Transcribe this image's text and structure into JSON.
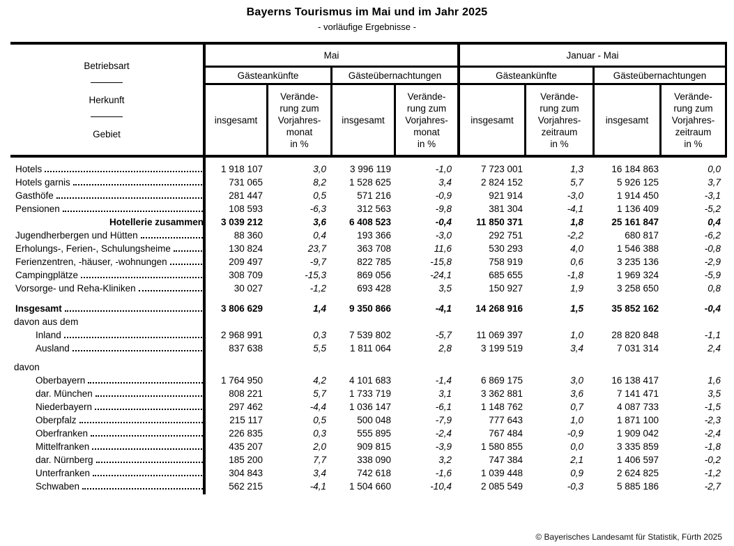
{
  "title": "Bayerns Tourismus im Mai und im Jahr 2025",
  "subtitle": "- vorläufige Ergebnisse -",
  "header": {
    "stub": {
      "line1": "Betriebsart",
      "line2": "Herkunft",
      "line3": "Gebiet"
    },
    "groups": [
      {
        "label": "Mai",
        "subgroups": [
          {
            "label": "Gästeankünfte"
          },
          {
            "label": "Gästeübernachtungen"
          }
        ],
        "value_label": "insgesamt",
        "change_label": "Verände-\nrung zum\nVorjahres-\nmonat\nin %"
      },
      {
        "label": "Januar - Mai",
        "subgroups": [
          {
            "label": "Gästeankünfte"
          },
          {
            "label": "Gästeübernachtungen"
          }
        ],
        "value_label": "insgesamt",
        "change_label": "Verände-\nrung zum\nVorjahres-\nzeitraum\nin %"
      }
    ]
  },
  "table": {
    "value_columns": [
      "mai_ankuenfte_insgesamt",
      "mai_ankuenfte_veraenderung_pct",
      "mai_uebernachtungen_insgesamt",
      "mai_uebernachtungen_veraenderung_pct",
      "jan_mai_ankuenfte_insgesamt",
      "jan_mai_ankuenfte_veraenderung_pct",
      "jan_mai_uebernachtungen_insgesamt",
      "jan_mai_uebernachtungen_veraenderung_pct"
    ],
    "rows": [
      {
        "label": "Hotels",
        "leader": true,
        "values": [
          "1 918 107",
          "3,0",
          "3 996 119",
          "-1,0",
          "7 723 001",
          "1,3",
          "16 184 863",
          "0,0"
        ]
      },
      {
        "label": "Hotels garnis",
        "leader": true,
        "values": [
          "731 065",
          "8,2",
          "1 528 625",
          "3,4",
          "2 824 152",
          "5,7",
          "5 926 125",
          "3,7"
        ]
      },
      {
        "label": "Gasthöfe",
        "leader": true,
        "values": [
          "281 447",
          "0,5",
          "571 216",
          "-0,9",
          "921 914",
          "-3,0",
          "1 914 450",
          "-3,1"
        ]
      },
      {
        "label": "Pensionen",
        "leader": true,
        "values": [
          "108 593",
          "-6,3",
          "312 563",
          "-9,8",
          "381 304",
          "-4,1",
          "1 136 409",
          "-5,2"
        ]
      },
      {
        "label": "Hotellerie zusammen",
        "bold": true,
        "align": "right",
        "leader": false,
        "values": [
          "3 039 212",
          "3,6",
          "6 408 523",
          "-0,4",
          "11 850 371",
          "1,8",
          "25 161 847",
          "0,4"
        ]
      },
      {
        "label": "Jugendherbergen und Hütten",
        "leader": true,
        "values": [
          "88 360",
          "0,4",
          "193 366",
          "-3,0",
          "292 751",
          "-2,2",
          "680 817",
          "-6,2"
        ]
      },
      {
        "label": "Erholungs-, Ferien-, Schulungsheime",
        "leader": true,
        "values": [
          "130 824",
          "23,7",
          "363 708",
          "11,6",
          "530 293",
          "4,0",
          "1 546 388",
          "-0,8"
        ]
      },
      {
        "label": "Ferienzentren, -häuser, -wohnungen",
        "leader": true,
        "values": [
          "209 497",
          "-9,7",
          "822 785",
          "-15,8",
          "758 919",
          "0,6",
          "3 235 136",
          "-2,9"
        ]
      },
      {
        "label": "Campingplätze",
        "leader": true,
        "values": [
          "308 709",
          "-15,3",
          "869 056",
          "-24,1",
          "685 655",
          "-1,8",
          "1 969 324",
          "-5,9"
        ]
      },
      {
        "label": "Vorsorge- und Reha-Kliniken",
        "leader": true,
        "values": [
          "30 027",
          "-1,2",
          "693 428",
          "3,5",
          "150 927",
          "1,9",
          "3 258 650",
          "0,8"
        ]
      },
      {
        "label": "Insgesamt",
        "bold": true,
        "leader": true,
        "gap_before": 10,
        "values": [
          "3 806 629",
          "1,4",
          "9 350 866",
          "-4,1",
          "14 268 916",
          "1,5",
          "35 852 162",
          "-0,4"
        ]
      },
      {
        "label": "davon aus dem",
        "section": true,
        "leader": false,
        "values": null
      },
      {
        "label": "Inland",
        "indent": true,
        "leader": true,
        "values": [
          "2 968 991",
          "0,3",
          "7 539 802",
          "-5,7",
          "11 069 397",
          "1,0",
          "28 820 848",
          "-1,1"
        ]
      },
      {
        "label": "Ausland",
        "indent": true,
        "leader": true,
        "values": [
          "837 638",
          "5,5",
          "1 811 064",
          "2,8",
          "3 199 519",
          "3,4",
          "7 031 314",
          "2,4"
        ]
      },
      {
        "label": "davon",
        "section": true,
        "leader": false,
        "gap_before": 8,
        "values": null
      },
      {
        "label": "Oberbayern",
        "indent": true,
        "leader": true,
        "values": [
          "1 764 950",
          "4,2",
          "4 101 683",
          "-1,4",
          "6 869 175",
          "3,0",
          "16 138 417",
          "1,6"
        ]
      },
      {
        "label": "dar. München",
        "indent": true,
        "leader": true,
        "values": [
          "808 221",
          "5,7",
          "1 733 719",
          "3,1",
          "3 362 881",
          "3,6",
          "7 141 471",
          "3,5"
        ]
      },
      {
        "label": "Niederbayern",
        "indent": true,
        "leader": true,
        "values": [
          "297 462",
          "-4,4",
          "1 036 147",
          "-6,1",
          "1 148 762",
          "0,7",
          "4 087 733",
          "-1,5"
        ]
      },
      {
        "label": "Oberpfalz",
        "indent": true,
        "leader": true,
        "values": [
          "215 117",
          "0,5",
          "500 048",
          "-7,9",
          "777 643",
          "1,0",
          "1 871 100",
          "-2,3"
        ]
      },
      {
        "label": "Oberfranken",
        "indent": true,
        "leader": true,
        "values": [
          "226 835",
          "0,3",
          "555 895",
          "-2,4",
          "767 484",
          "-0,9",
          "1 909 042",
          "-2,4"
        ]
      },
      {
        "label": "Mittelfranken",
        "indent": true,
        "leader": true,
        "values": [
          "435 207",
          "2,0",
          "909 815",
          "-3,9",
          "1 580 855",
          "0,0",
          "3 335 859",
          "-1,8"
        ]
      },
      {
        "label": "dar. Nürnberg",
        "indent": true,
        "leader": true,
        "values": [
          "185 200",
          "7,7",
          "338 090",
          "3,2",
          "747 384",
          "2,1",
          "1 406 597",
          "-0,2"
        ]
      },
      {
        "label": "Unterfranken",
        "indent": true,
        "leader": true,
        "values": [
          "304 843",
          "3,4",
          "742 618",
          "-1,6",
          "1 039 448",
          "0,9",
          "2 624 825",
          "-1,2"
        ]
      },
      {
        "label": "Schwaben",
        "indent": true,
        "leader": true,
        "values": [
          "562 215",
          "-4,1",
          "1 504 660",
          "-10,4",
          "2 085 549",
          "-0,3",
          "5 885 186",
          "-2,7"
        ]
      }
    ]
  },
  "footer": {
    "copyright": "© Bayerisches Landesamt für Statistik, Fürth 2025"
  },
  "colors": {
    "text": "#000000",
    "rules": "#000000",
    "background": "#ffffff"
  }
}
